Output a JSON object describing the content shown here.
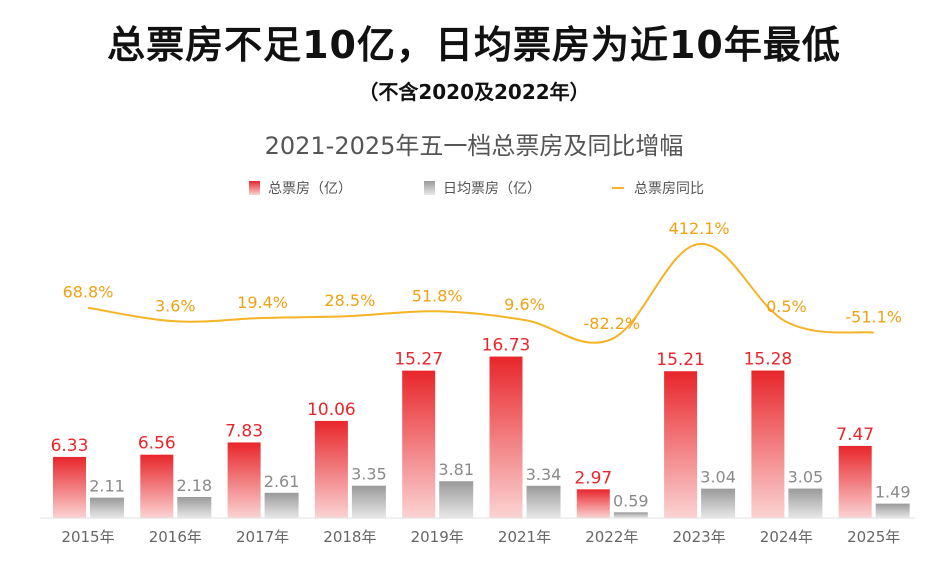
{
  "header": {
    "title": "总票房不足10亿，日均票房为近10年最低",
    "subtitle": "（不含2020及2022年）"
  },
  "chart_data": {
    "type": "bar",
    "title": "2021-2025年五一档总票房及同比增幅",
    "categories": [
      "2015年",
      "2016年",
      "2017年",
      "2018年",
      "2019年",
      "2021年",
      "2022年",
      "2023年",
      "2024年",
      "2025年"
    ],
    "series": [
      {
        "name": "总票房（亿）",
        "type": "bar",
        "color": "#e8262b",
        "values": [
          6.33,
          6.56,
          7.83,
          10.06,
          15.27,
          16.73,
          2.97,
          15.21,
          15.28,
          7.47
        ]
      },
      {
        "name": "日均票房（亿）",
        "type": "bar",
        "color": "#9e9e9e",
        "values": [
          2.11,
          2.18,
          2.61,
          3.35,
          3.81,
          3.34,
          0.59,
          3.04,
          3.05,
          1.49
        ]
      },
      {
        "name": "总票房同比",
        "type": "line",
        "color": "#f5b325",
        "values": [
          68.8,
          3.6,
          19.4,
          28.5,
          51.8,
          9.6,
          -82.2,
          412.1,
          0.5,
          -51.1
        ],
        "labels": [
          "68.8%",
          "3.6%",
          "19.4%",
          "28.5%",
          "51.8%",
          "9.6%",
          "-82.2%",
          "412.1%",
          "0.5%",
          "-51.1%"
        ]
      }
    ],
    "legend_position": "top-center",
    "grid": false
  }
}
